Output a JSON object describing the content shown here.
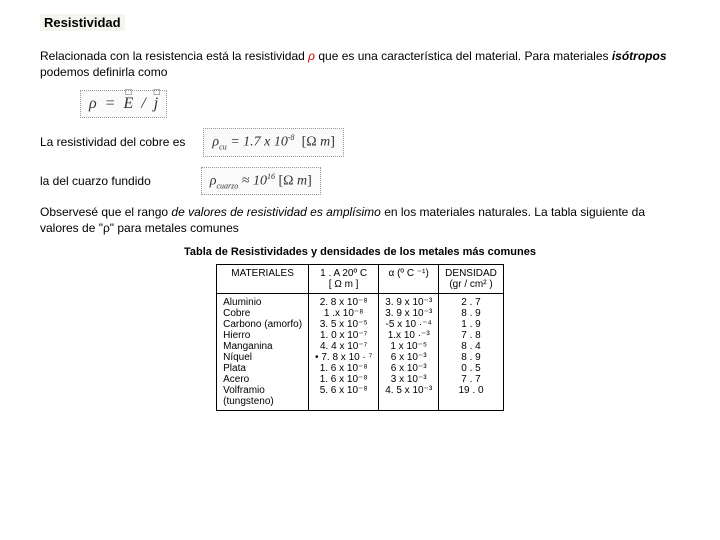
{
  "title": "Resistividad",
  "p1a": "Relacionada con la resistencia está la resistividad ",
  "p1_rho": "ρ",
  "p1b": " que es una característica del material. Para materiales ",
  "p1_iso": "isótropos",
  "p1c": " podemos definirla como",
  "eq_main_before": "ρ  =  E",
  "eq_main_mid": "  /  ",
  "eq_main_after": "j",
  "p2": "La resistividad del cobre es",
  "eq_cu": "ρ_cu = 1.7 x 10⁻⁸  [Ω m]",
  "p3": "la del cuarzo fundido",
  "eq_cuarzo": "ρ_cuarzo ≈ 10¹⁶ [Ω m]",
  "p4a": "Observesé que el rango ",
  "p4_em": "de valores de resistividad es amplísimo",
  "p4b": " en los materiales naturales. La tabla siguiente da valores de \"ρ\"  para metales comunes",
  "table_title": "Tabla de  Resistividades y densidades de los metales más comunes",
  "headers": {
    "h1": "MATERIALES",
    "h2a": "1 . A 20º C",
    "h2b": "[ Ω   m ]",
    "h3": "α  (º C ⁻¹)",
    "h4a": "DENSIDAD",
    "h4b": "(gr  /   cm² )"
  },
  "rows": [
    {
      "mat": "Aluminio",
      "rho": "2. 8 x 10⁻⁸",
      "alpha": "3. 9 x 10⁻³",
      "dens": "2 . 7"
    },
    {
      "mat": "Cobre",
      "rho": "1 .x  10⁻⁸",
      "alpha": "3. 9 x 10⁻³",
      "dens": "8 . 9"
    },
    {
      "mat": "Carbono (amorfo)",
      "rho": "3. 5 x  10⁻⁵",
      "alpha": "-5 x 10 ·⁻⁴",
      "dens": "1 . 9"
    },
    {
      "mat": "Hierro",
      "rho": "1. 0 x 10⁻⁷",
      "alpha": "1.x 10 ·⁻³",
      "dens": "7 . 8"
    },
    {
      "mat": "Manganina",
      "rho": "4. 4 x 10⁻⁷",
      "alpha": "1 x 10⁻⁵",
      "dens": "8 . 4"
    },
    {
      "mat": "Níquel",
      "rho": "•   7. 8 x  10 · ⁷",
      "alpha": "6 x 10⁻³",
      "dens": "8 . 9"
    },
    {
      "mat": "Plata",
      "rho": "1. 6 x 10⁻⁸",
      "alpha": "6 x 10⁻³",
      "dens": "0 . 5"
    },
    {
      "mat": "Acero",
      "rho": "1. 6 x 10⁻⁸",
      "alpha": "3 x 10⁻³",
      "dens": "7 . 7"
    },
    {
      "mat": "Volframio",
      "rho": "5. 6 x 10⁻⁸",
      "alpha": "4. 5 x 10⁻³",
      "dens": "19 . 0"
    },
    {
      "mat": "(tungsteno)",
      "rho": "",
      "alpha": "",
      "dens": ""
    }
  ]
}
